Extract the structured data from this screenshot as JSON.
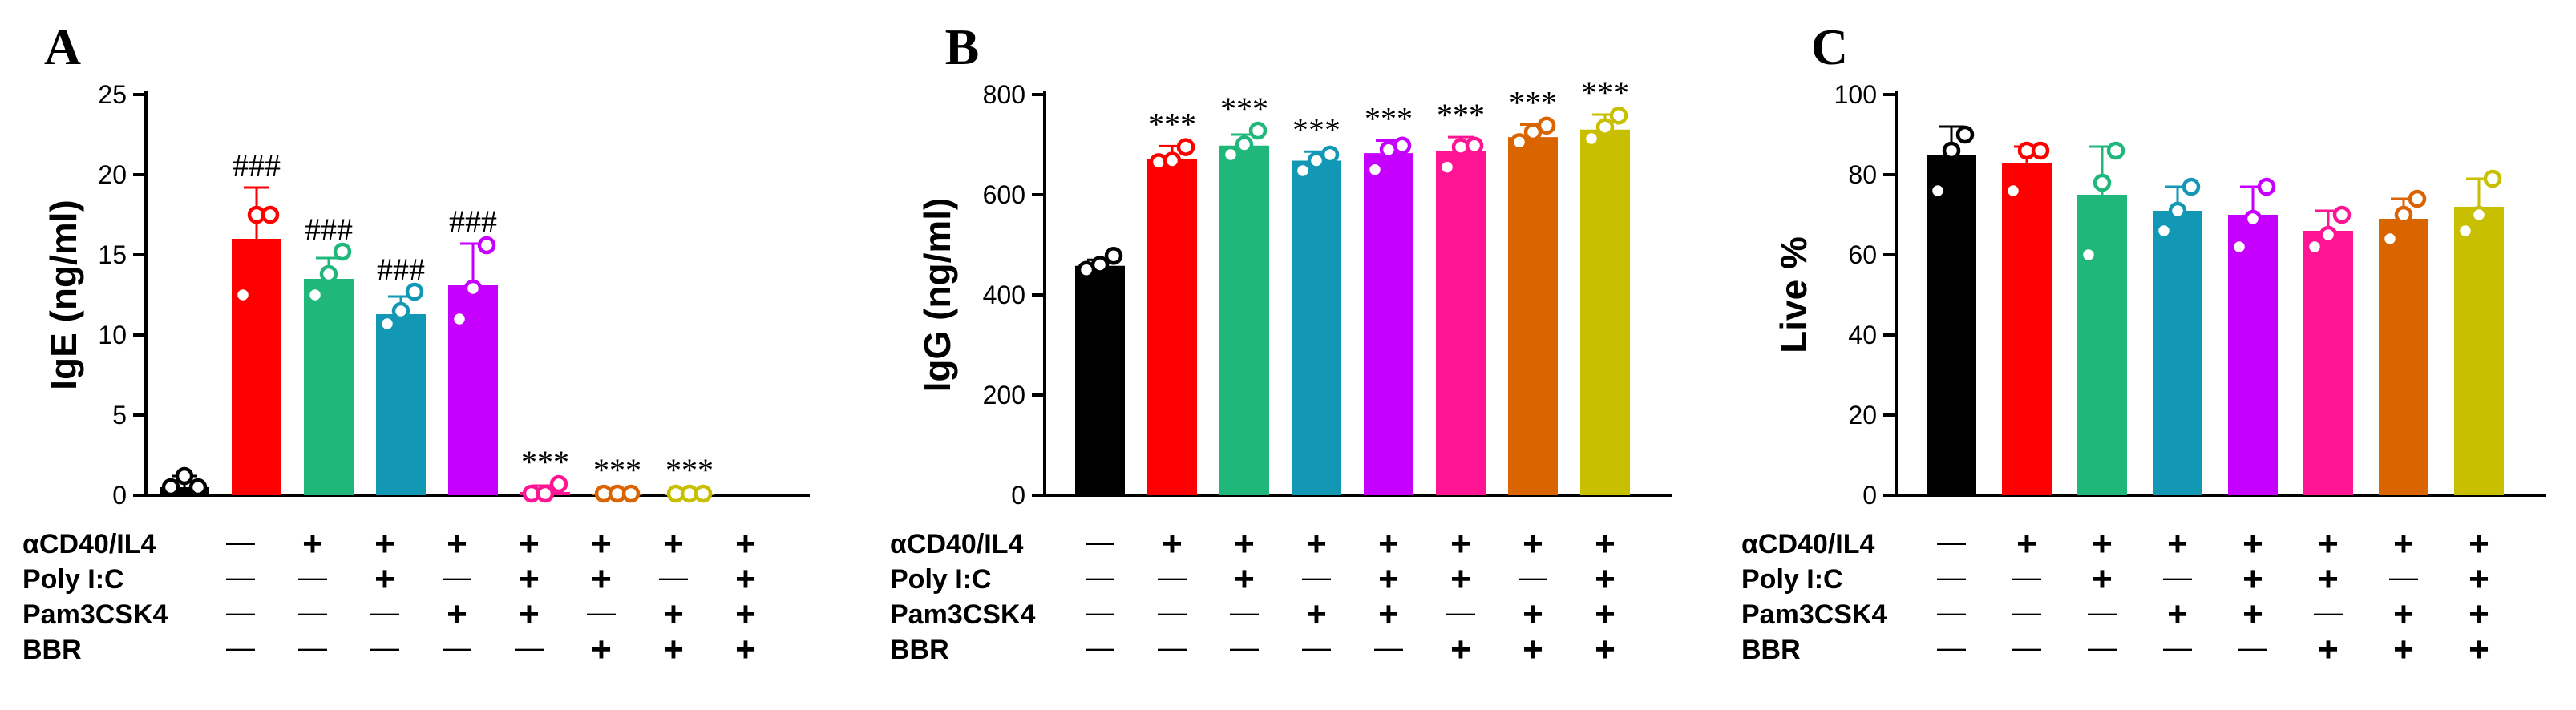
{
  "colors": [
    "#000000",
    "#ff0000",
    "#1fb87a",
    "#1298b5",
    "#c500ff",
    "#ff1493",
    "#d96400",
    "#c8bf00"
  ],
  "row_labels": [
    "αCD40/IL4",
    "Poly I:C",
    "Pam3CSK4",
    "BBR"
  ],
  "row_symbols": {
    "plus": "+",
    "minus": "—",
    "rows": [
      [
        "—",
        "+",
        "+",
        "+",
        "+",
        "+",
        "+",
        "+"
      ],
      [
        "—",
        "—",
        "+",
        "—",
        "+",
        "+",
        "—",
        "+"
      ],
      [
        "—",
        "—",
        "—",
        "+",
        "+",
        "—",
        "+",
        "+"
      ],
      [
        "—",
        "—",
        "—",
        "—",
        "—",
        "+",
        "+",
        "+"
      ]
    ]
  },
  "chart_data": [
    {
      "type": "bar",
      "panel": "A",
      "ylabel": "IgE (ng/ml)",
      "ylim": [
        0,
        25
      ],
      "yticks": [
        "0",
        "5",
        "10",
        "15",
        "20",
        "25"
      ],
      "values": [
        0.5,
        16.0,
        13.5,
        11.3,
        13.1,
        0.2,
        0.1,
        0.1
      ],
      "errors": [
        0.7,
        3.2,
        1.3,
        1.1,
        2.6,
        0.4,
        0.1,
        0.1
      ],
      "points": [
        [
          0.5,
          1.2,
          0.5
        ],
        [
          12.5,
          17.5,
          17.5
        ],
        [
          12.5,
          13.8,
          15.2
        ],
        [
          10.7,
          11.5,
          12.7
        ],
        [
          11.0,
          12.9,
          15.6
        ],
        [
          0.1,
          0.1,
          0.7
        ],
        [
          0.1,
          0.1,
          0.1
        ],
        [
          0.1,
          0.1,
          0.1
        ]
      ],
      "annotations": [
        "",
        "###",
        "###",
        "###",
        "###",
        "***",
        "***",
        "***"
      ]
    },
    {
      "type": "bar",
      "panel": "B",
      "ylabel": "IgG (ng/ml)",
      "ylim": [
        0,
        800
      ],
      "yticks": [
        "0",
        "200",
        "400",
        "600",
        "800"
      ],
      "values": [
        458,
        672,
        698,
        668,
        683,
        687,
        715,
        730
      ],
      "errors": [
        12,
        25,
        22,
        18,
        25,
        28,
        25,
        30
      ],
      "points": [
        [
          450,
          460,
          478
        ],
        [
          665,
          668,
          695
        ],
        [
          680,
          700,
          728
        ],
        [
          648,
          668,
          680
        ],
        [
          650,
          690,
          698
        ],
        [
          655,
          695,
          698
        ],
        [
          705,
          725,
          738
        ],
        [
          712,
          735,
          758
        ]
      ],
      "annotations": [
        "",
        "***",
        "***",
        "***",
        "***",
        "***",
        "***",
        "***"
      ]
    },
    {
      "type": "bar",
      "panel": "C",
      "ylabel": "Live %",
      "ylim": [
        0,
        100
      ],
      "yticks": [
        "0",
        "20",
        "40",
        "60",
        "80",
        "100"
      ],
      "values": [
        85,
        83,
        75,
        71,
        70,
        66,
        69,
        72
      ],
      "errors": [
        7,
        4,
        12,
        6,
        7,
        5,
        5,
        7
      ],
      "points": [
        [
          76,
          86,
          90
        ],
        [
          76,
          86,
          86
        ],
        [
          60,
          78,
          86
        ],
        [
          66,
          71,
          77
        ],
        [
          62,
          69,
          77
        ],
        [
          62,
          65,
          70
        ],
        [
          64,
          70,
          74
        ],
        [
          66,
          70,
          79
        ]
      ],
      "annotations": [
        "",
        "",
        "",
        "",
        "",
        "",
        "",
        ""
      ]
    }
  ]
}
